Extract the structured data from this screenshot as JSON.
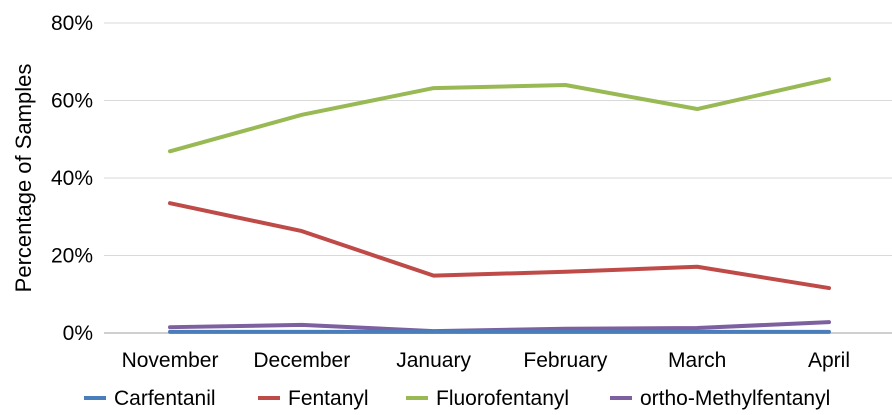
{
  "chart_data": {
    "type": "line",
    "categories": [
      "November",
      "December",
      "January",
      "February",
      "March",
      "April"
    ],
    "ylabel": "Percentage of Samples",
    "ylim": [
      0,
      80
    ],
    "yticks": [
      0,
      20,
      40,
      60,
      80
    ],
    "ytick_suffix": "%",
    "grid": true,
    "legend": "bottom",
    "series": [
      {
        "name": "Carfentanil",
        "color": "#4a7ebb",
        "values": [
          0.3,
          0.3,
          0.3,
          0.3,
          0.3,
          0.3
        ]
      },
      {
        "name": "Fentanyl",
        "color": "#be4b48",
        "values": [
          33.5,
          26.3,
          14.8,
          15.8,
          17.1,
          11.6
        ]
      },
      {
        "name": "Fluorofentanyl",
        "color": "#98b954",
        "values": [
          46.9,
          56.3,
          63.2,
          64.0,
          57.8,
          65.5
        ]
      },
      {
        "name": "ortho-Methylfentanyl",
        "color": "#7d60a0",
        "values": [
          1.5,
          2.1,
          0.5,
          1.1,
          1.3,
          2.8
        ]
      }
    ]
  }
}
